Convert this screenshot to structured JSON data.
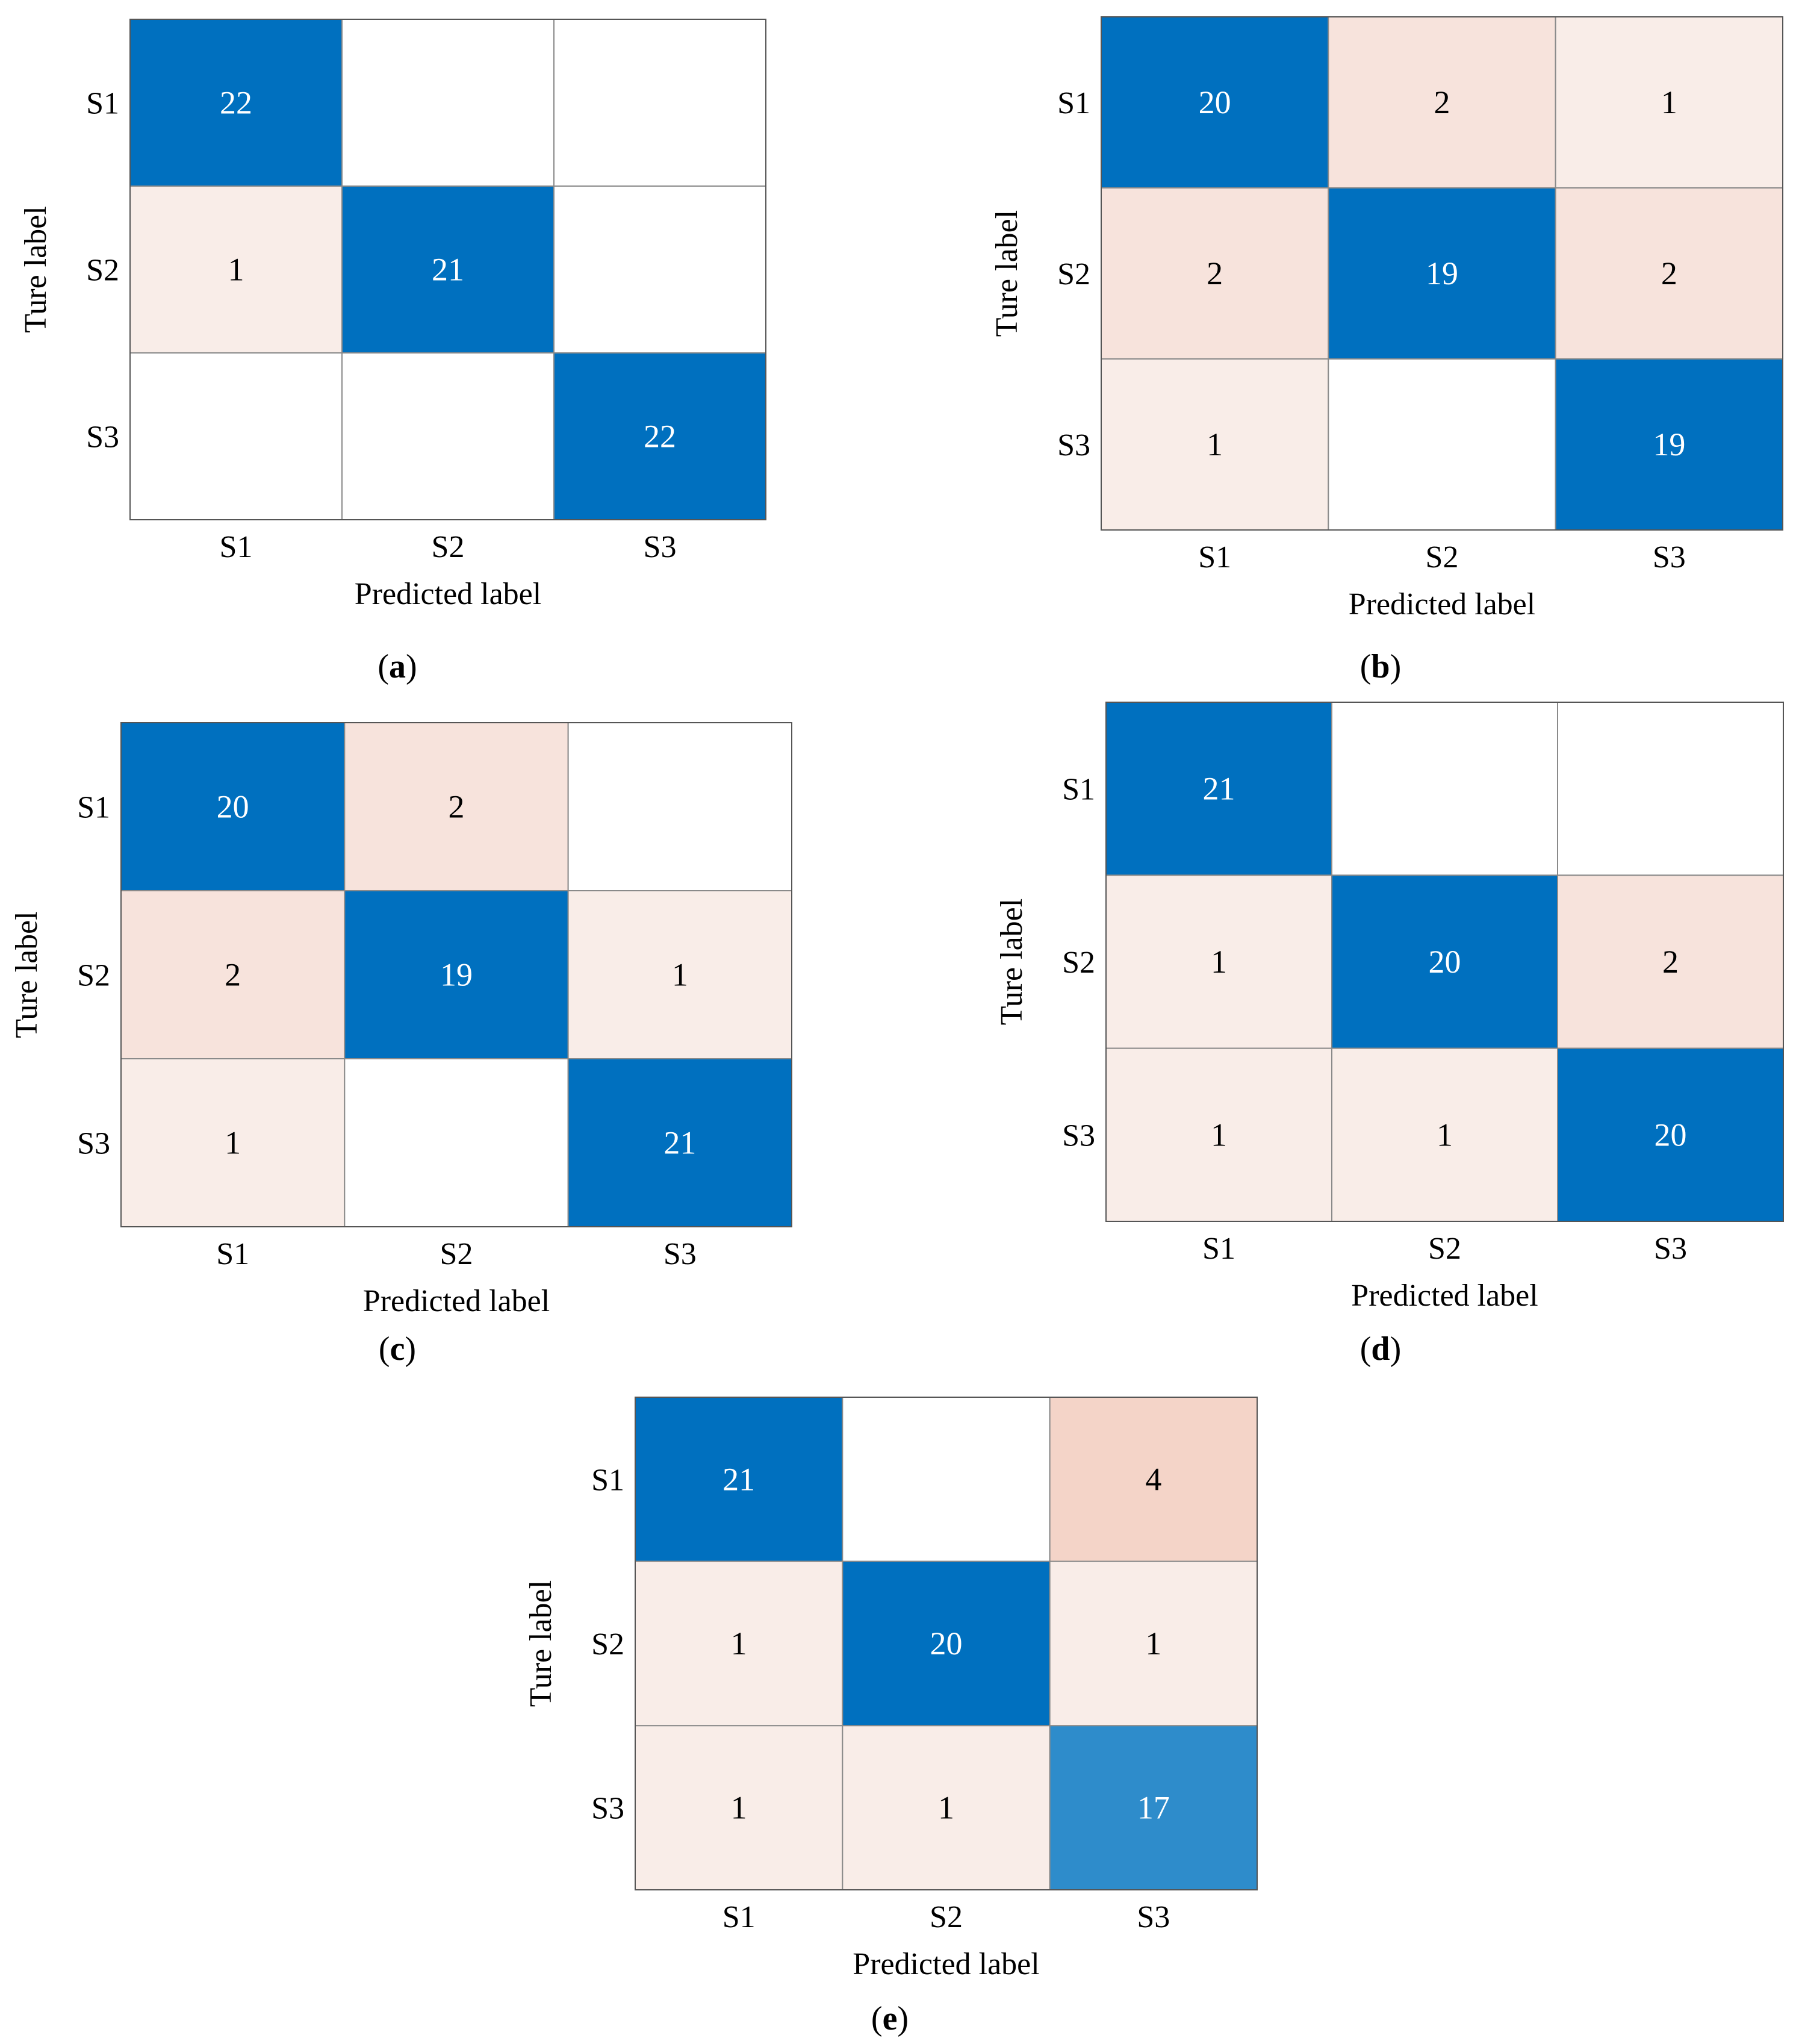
{
  "chart_data": [
    {
      "type": "heatmap",
      "panel_label": "a",
      "xlabel": "Predicted label",
      "ylabel": "Ture label",
      "x_categories": [
        "S1",
        "S2",
        "S3"
      ],
      "y_categories": [
        "S1",
        "S2",
        "S3"
      ],
      "values": [
        [
          22,
          null,
          null
        ],
        [
          1,
          21,
          null
        ],
        [
          null,
          null,
          22
        ]
      ]
    },
    {
      "type": "heatmap",
      "panel_label": "b",
      "xlabel": "Predicted label",
      "ylabel": "Ture label",
      "x_categories": [
        "S1",
        "S2",
        "S3"
      ],
      "y_categories": [
        "S1",
        "S2",
        "S3"
      ],
      "values": [
        [
          20,
          2,
          1
        ],
        [
          2,
          19,
          2
        ],
        [
          1,
          null,
          19
        ]
      ]
    },
    {
      "type": "heatmap",
      "panel_label": "c",
      "xlabel": "Predicted label",
      "ylabel": "Ture label",
      "x_categories": [
        "S1",
        "S2",
        "S3"
      ],
      "y_categories": [
        "S1",
        "S2",
        "S3"
      ],
      "values": [
        [
          20,
          2,
          null
        ],
        [
          2,
          19,
          1
        ],
        [
          1,
          null,
          21
        ]
      ]
    },
    {
      "type": "heatmap",
      "panel_label": "d",
      "xlabel": "Predicted label",
      "ylabel": "Ture label",
      "x_categories": [
        "S1",
        "S2",
        "S3"
      ],
      "y_categories": [
        "S1",
        "S2",
        "S3"
      ],
      "values": [
        [
          21,
          null,
          null
        ],
        [
          1,
          20,
          2
        ],
        [
          1,
          1,
          20
        ]
      ]
    },
    {
      "type": "heatmap",
      "panel_label": "e",
      "xlabel": "Predicted label",
      "ylabel": "Ture label",
      "x_categories": [
        "S1",
        "S2",
        "S3"
      ],
      "y_categories": [
        "S1",
        "S2",
        "S3"
      ],
      "values": [
        [
          21,
          null,
          4
        ],
        [
          1,
          20,
          1
        ],
        [
          1,
          1,
          17
        ]
      ]
    }
  ],
  "colors": {
    "diagonal_dark": "#0070bf",
    "diagonal_light": "#2e8ccb",
    "offdiag_1": "#f9ede8",
    "offdiag_2": "#f7e3dc",
    "offdiag_4": "#f4d4c8",
    "empty": "#ffffff",
    "grid": "#8a8a8a",
    "text_dark": "#000000",
    "text_light": "#ffffff"
  }
}
